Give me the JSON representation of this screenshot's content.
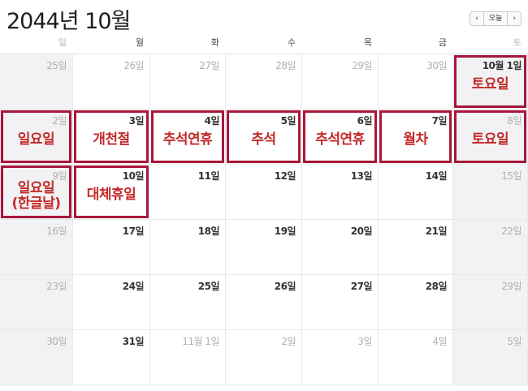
{
  "header": {
    "title": "2044년 10월",
    "prev_icon": "chevron-left-icon",
    "today_label": "오늘",
    "next_icon": "chevron-right-icon"
  },
  "weekdays": [
    "일",
    "월",
    "화",
    "수",
    "목",
    "금",
    "토"
  ],
  "colors": {
    "highlight_border": "#a8163a",
    "annotation_text": "#c42a2a",
    "weekend_bg": "#f2f2f4"
  },
  "weeks": [
    [
      {
        "label": "25일",
        "muted": true
      },
      {
        "label": "26일",
        "muted": true
      },
      {
        "label": "27일",
        "muted": true
      },
      {
        "label": "28일",
        "muted": true
      },
      {
        "label": "29일",
        "muted": true
      },
      {
        "label": "30일",
        "muted": true
      },
      {
        "label": "10월 1일",
        "muted": false,
        "note": "토요일",
        "highlight": true
      }
    ],
    [
      {
        "label": "2일",
        "muted": true,
        "note": "일요일",
        "highlight": true
      },
      {
        "label": "3일",
        "note": "개천절",
        "highlight": true
      },
      {
        "label": "4일",
        "note": "추석연휴",
        "highlight": true
      },
      {
        "label": "5일",
        "note": "추석",
        "highlight": true
      },
      {
        "label": "6일",
        "note": "추석연휴",
        "highlight": true
      },
      {
        "label": "7일",
        "note": "월차",
        "highlight": true
      },
      {
        "label": "8일",
        "muted": true,
        "note": "토요일",
        "highlight": true
      }
    ],
    [
      {
        "label": "9일",
        "muted": true,
        "note": "일요일\n(한글날)",
        "highlight": true
      },
      {
        "label": "10일",
        "note": "대체휴일",
        "highlight": true
      },
      {
        "label": "11일"
      },
      {
        "label": "12일"
      },
      {
        "label": "13일"
      },
      {
        "label": "14일"
      },
      {
        "label": "15일",
        "muted": true
      }
    ],
    [
      {
        "label": "16일",
        "muted": true
      },
      {
        "label": "17일"
      },
      {
        "label": "18일"
      },
      {
        "label": "19일"
      },
      {
        "label": "20일"
      },
      {
        "label": "21일"
      },
      {
        "label": "22일",
        "muted": true
      }
    ],
    [
      {
        "label": "23일",
        "muted": true
      },
      {
        "label": "24일"
      },
      {
        "label": "25일"
      },
      {
        "label": "26일"
      },
      {
        "label": "27일"
      },
      {
        "label": "28일"
      },
      {
        "label": "29일",
        "muted": true
      }
    ],
    [
      {
        "label": "30일",
        "muted": true
      },
      {
        "label": "31일"
      },
      {
        "label": "11월 1일",
        "muted": true
      },
      {
        "label": "2일",
        "muted": true
      },
      {
        "label": "3일",
        "muted": true
      },
      {
        "label": "4일",
        "muted": true
      },
      {
        "label": "5일",
        "muted": true
      }
    ]
  ]
}
